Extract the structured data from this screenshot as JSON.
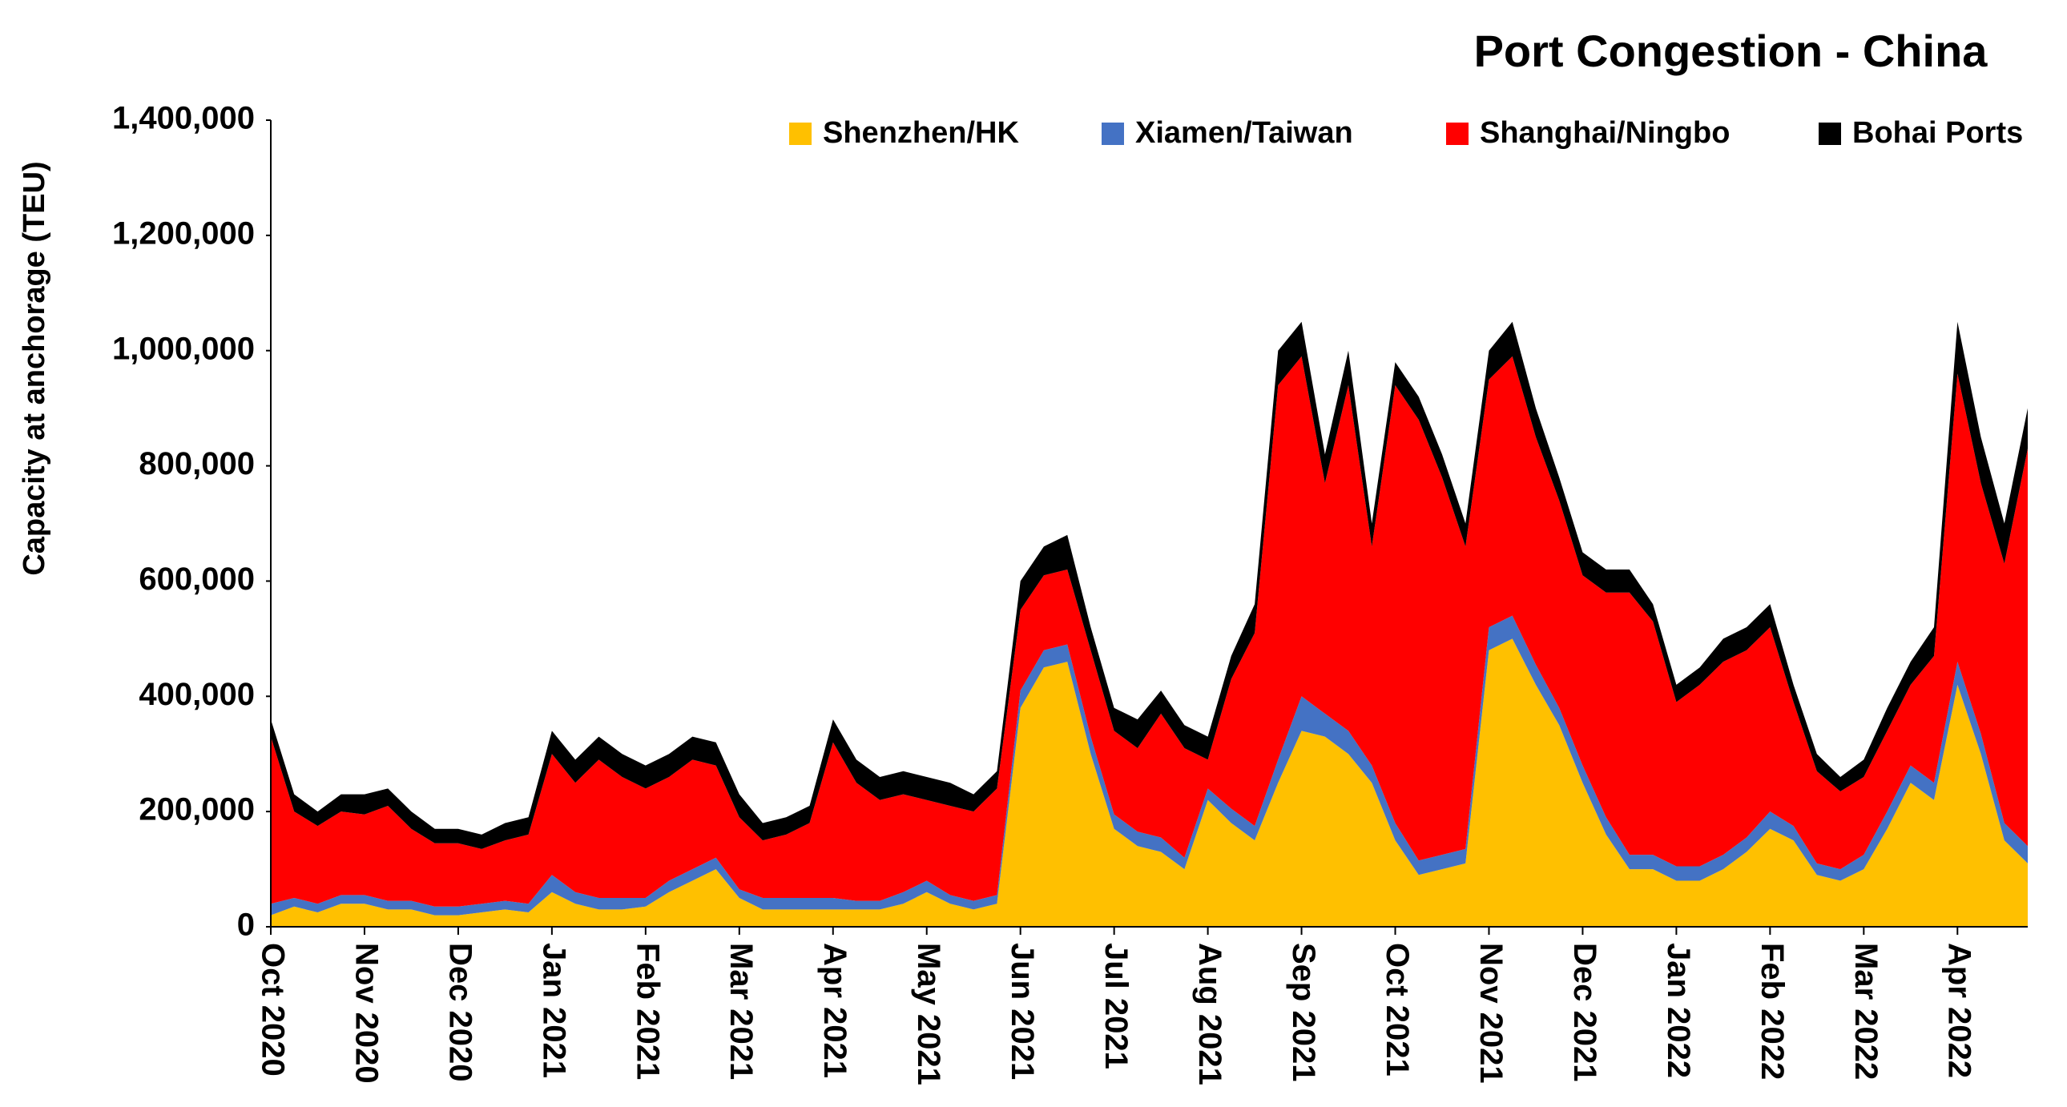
{
  "chart_data": {
    "type": "stacked-area",
    "title": "Port Congestion - China",
    "y_label": "Capacity at anchorage (TEU)",
    "legend": "top-right",
    "categories": [
      "Oct 2020",
      null,
      null,
      null,
      "Nov 2020",
      null,
      null,
      null,
      "Dec 2020",
      null,
      null,
      null,
      "Jan 2021",
      null,
      null,
      null,
      "Feb 2021",
      null,
      null,
      null,
      "Mar 2021",
      null,
      null,
      null,
      "Apr 2021",
      null,
      null,
      null,
      "May 2021",
      null,
      null,
      null,
      "Jun 2021",
      null,
      null,
      null,
      "Jul 2021",
      null,
      null,
      null,
      "Aug 2021",
      null,
      null,
      null,
      "Sep 2021",
      null,
      null,
      null,
      "Oct 2021",
      null,
      null,
      null,
      "Nov 2021",
      null,
      null,
      null,
      "Dec 2021",
      null,
      null,
      null,
      "Jan 2022",
      null,
      null,
      null,
      "Feb 2022",
      null,
      null,
      null,
      "Mar 2022",
      null,
      null,
      null,
      "Apr 2022",
      null,
      null,
      null
    ],
    "series": [
      {
        "name": "Shenzhen/HK",
        "color": "#ffc000",
        "values": [
          20000,
          35000,
          25000,
          40000,
          40000,
          30000,
          30000,
          20000,
          20000,
          25000,
          30000,
          25000,
          60000,
          40000,
          30000,
          30000,
          35000,
          60000,
          80000,
          100000,
          50000,
          30000,
          30000,
          30000,
          30000,
          30000,
          30000,
          40000,
          60000,
          40000,
          30000,
          40000,
          380000,
          450000,
          460000,
          300000,
          170000,
          140000,
          130000,
          100000,
          220000,
          180000,
          150000,
          250000,
          340000,
          330000,
          300000,
          250000,
          150000,
          90000,
          100000,
          110000,
          480000,
          500000,
          420000,
          350000,
          250000,
          160000,
          100000,
          100000,
          80000,
          80000,
          100000,
          130000,
          170000,
          150000,
          90000,
          80000,
          100000,
          170000,
          250000,
          220000,
          420000,
          300000,
          150000,
          110000
        ]
      },
      {
        "name": "Xiamen/Taiwan",
        "color": "#4472c4",
        "values": [
          20000,
          15000,
          15000,
          15000,
          15000,
          15000,
          15000,
          15000,
          15000,
          15000,
          15000,
          15000,
          30000,
          20000,
          20000,
          20000,
          15000,
          20000,
          20000,
          20000,
          15000,
          20000,
          20000,
          20000,
          20000,
          15000,
          15000,
          20000,
          20000,
          15000,
          15000,
          15000,
          30000,
          30000,
          30000,
          30000,
          25000,
          25000,
          25000,
          20000,
          20000,
          25000,
          25000,
          40000,
          60000,
          40000,
          40000,
          30000,
          30000,
          25000,
          25000,
          25000,
          40000,
          40000,
          35000,
          30000,
          30000,
          30000,
          25000,
          25000,
          25000,
          25000,
          25000,
          25000,
          30000,
          25000,
          20000,
          20000,
          25000,
          30000,
          30000,
          30000,
          40000,
          35000,
          30000,
          30000
        ]
      },
      {
        "name": "Shanghai/Ningbo",
        "color": "#ff0000",
        "values": [
          290000,
          150000,
          135000,
          145000,
          140000,
          165000,
          125000,
          110000,
          110000,
          95000,
          105000,
          120000,
          210000,
          190000,
          240000,
          210000,
          190000,
          180000,
          190000,
          160000,
          125000,
          100000,
          110000,
          130000,
          270000,
          205000,
          175000,
          170000,
          140000,
          155000,
          155000,
          185000,
          140000,
          130000,
          130000,
          150000,
          145000,
          145000,
          215000,
          190000,
          50000,
          225000,
          335000,
          650000,
          590000,
          400000,
          600000,
          380000,
          760000,
          765000,
          655000,
          525000,
          430000,
          450000,
          395000,
          360000,
          330000,
          390000,
          455000,
          405000,
          285000,
          315000,
          335000,
          325000,
          320000,
          215000,
          160000,
          135000,
          135000,
          140000,
          140000,
          220000,
          500000,
          435000,
          450000,
          690000
        ]
      },
      {
        "name": "Bohai Ports",
        "color": "#000000",
        "values": [
          30000,
          30000,
          25000,
          30000,
          35000,
          30000,
          30000,
          25000,
          25000,
          25000,
          30000,
          30000,
          40000,
          40000,
          40000,
          40000,
          40000,
          40000,
          40000,
          40000,
          40000,
          30000,
          30000,
          30000,
          40000,
          40000,
          40000,
          40000,
          40000,
          40000,
          30000,
          30000,
          50000,
          50000,
          60000,
          40000,
          40000,
          50000,
          40000,
          40000,
          40000,
          40000,
          50000,
          60000,
          60000,
          50000,
          60000,
          40000,
          40000,
          40000,
          40000,
          40000,
          50000,
          60000,
          50000,
          40000,
          40000,
          40000,
          40000,
          30000,
          30000,
          30000,
          40000,
          40000,
          40000,
          30000,
          30000,
          25000,
          30000,
          40000,
          40000,
          50000,
          90000,
          80000,
          70000,
          70000
        ]
      }
    ],
    "ylim": [
      0,
      1400000
    ],
    "yticks": [
      0,
      {
        "value": 200000,
        "label": "200,000"
      },
      {
        "value": 400000,
        "label": "400,000"
      },
      {
        "value": 600000,
        "label": "600,000"
      },
      {
        "value": 800000,
        "label": "800,000"
      },
      {
        "value": 1000000,
        "label": "1,000,000"
      },
      {
        "value": 1200000,
        "label": "1,200,000"
      },
      {
        "value": 1400000,
        "label": "1,400,000"
      }
    ],
    "grid": false
  }
}
